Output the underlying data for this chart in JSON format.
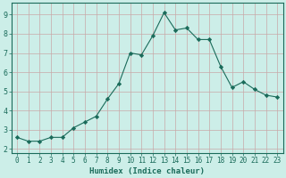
{
  "x": [
    0,
    1,
    2,
    3,
    4,
    5,
    6,
    7,
    8,
    9,
    10,
    11,
    12,
    13,
    14,
    15,
    16,
    17,
    18,
    19,
    20,
    21,
    22,
    23
  ],
  "y": [
    2.6,
    2.4,
    2.4,
    2.6,
    2.6,
    3.1,
    3.4,
    3.7,
    4.6,
    5.4,
    7.0,
    6.9,
    7.9,
    9.1,
    8.2,
    8.3,
    7.7,
    7.7,
    6.3,
    5.2,
    5.5,
    5.1,
    4.8,
    4.7
  ],
  "line_color": "#1a6b5a",
  "marker": "D",
  "marker_size": 2.2,
  "bg_color": "#cceee8",
  "grid_color_major": "#c8a8a8",
  "grid_color_minor": "#c8a8a8",
  "xlabel": "Humidex (Indice chaleur)",
  "xlim": [
    -0.5,
    23.5
  ],
  "ylim": [
    1.8,
    9.6
  ],
  "yticks": [
    2,
    3,
    4,
    5,
    6,
    7,
    8,
    9
  ],
  "xticks": [
    0,
    1,
    2,
    3,
    4,
    5,
    6,
    7,
    8,
    9,
    10,
    11,
    12,
    13,
    14,
    15,
    16,
    17,
    18,
    19,
    20,
    21,
    22,
    23
  ],
  "tick_fontsize": 5.5,
  "xlabel_fontsize": 6.5
}
